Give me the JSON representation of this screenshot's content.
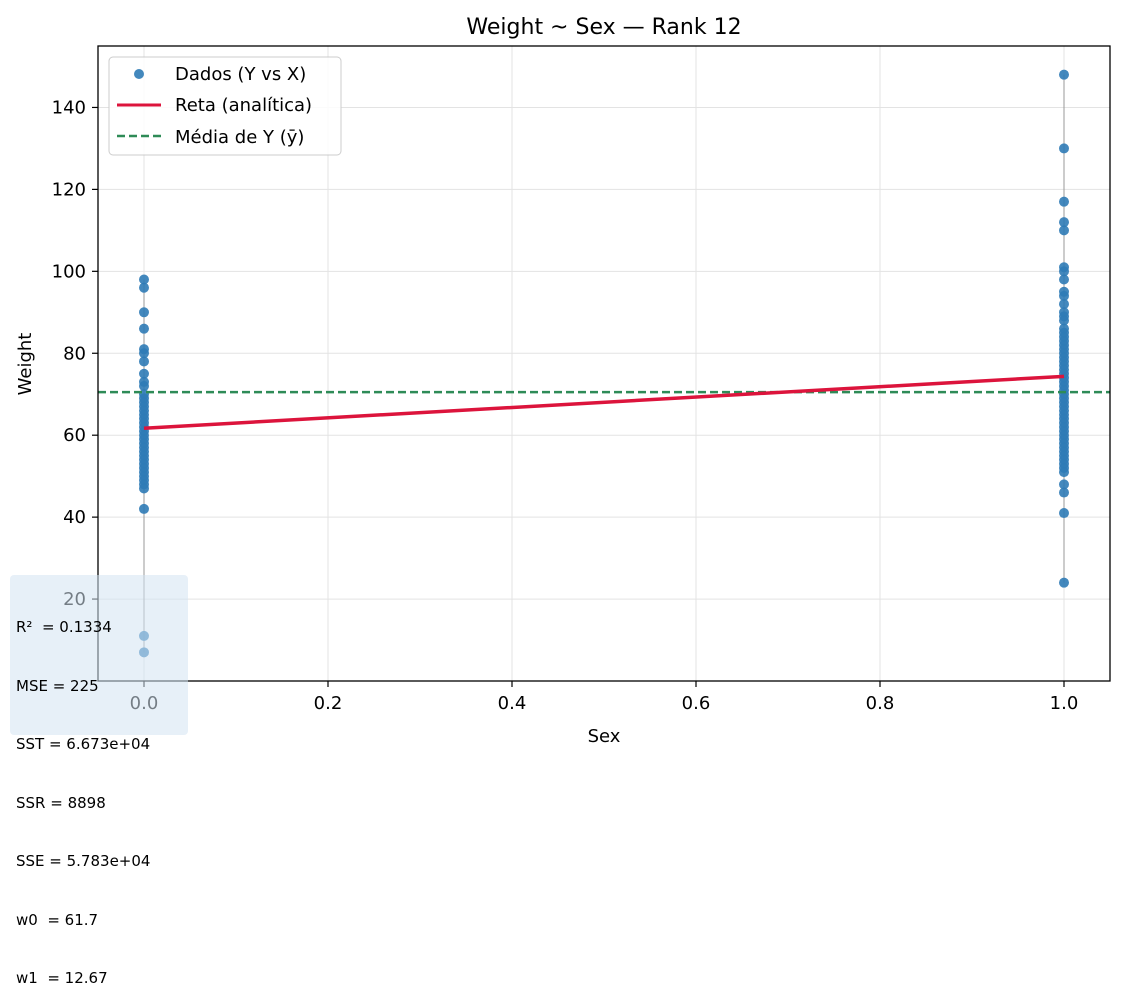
{
  "chart_data": {
    "type": "scatter",
    "title": "Weight ~ Sex — Rank 12",
    "xlabel": "Sex",
    "ylabel": "Weight",
    "xlim": [
      -0.05,
      1.05
    ],
    "ylim": [
      0,
      155
    ],
    "xticks": [
      0.0,
      0.2,
      0.4,
      0.6,
      0.8,
      1.0
    ],
    "xtick_labels": [
      "0.0",
      "0.2",
      "0.4",
      "0.6",
      "0.8",
      "1.0"
    ],
    "yticks": [
      20,
      40,
      60,
      80,
      100,
      120,
      140
    ],
    "ytick_labels": [
      "20",
      "40",
      "60",
      "80",
      "100",
      "120",
      "140"
    ],
    "grid": true,
    "legend_position": "top-left",
    "series": [
      {
        "name": "Dados (Y vs X)",
        "kind": "scatter",
        "color": "#2f7bb6",
        "points": [
          {
            "x": 0,
            "y": 98
          },
          {
            "x": 0,
            "y": 96
          },
          {
            "x": 0,
            "y": 90
          },
          {
            "x": 0,
            "y": 86
          },
          {
            "x": 0,
            "y": 81
          },
          {
            "x": 0,
            "y": 80
          },
          {
            "x": 0,
            "y": 78
          },
          {
            "x": 0,
            "y": 75
          },
          {
            "x": 0,
            "y": 73
          },
          {
            "x": 0,
            "y": 72
          },
          {
            "x": 0,
            "y": 70
          },
          {
            "x": 0,
            "y": 69
          },
          {
            "x": 0,
            "y": 68
          },
          {
            "x": 0,
            "y": 67
          },
          {
            "x": 0,
            "y": 66
          },
          {
            "x": 0,
            "y": 65
          },
          {
            "x": 0,
            "y": 64
          },
          {
            "x": 0,
            "y": 63
          },
          {
            "x": 0,
            "y": 62
          },
          {
            "x": 0,
            "y": 61
          },
          {
            "x": 0,
            "y": 60
          },
          {
            "x": 0,
            "y": 59
          },
          {
            "x": 0,
            "y": 58
          },
          {
            "x": 0,
            "y": 57
          },
          {
            "x": 0,
            "y": 56
          },
          {
            "x": 0,
            "y": 55
          },
          {
            "x": 0,
            "y": 54
          },
          {
            "x": 0,
            "y": 53
          },
          {
            "x": 0,
            "y": 52
          },
          {
            "x": 0,
            "y": 51
          },
          {
            "x": 0,
            "y": 50
          },
          {
            "x": 0,
            "y": 49
          },
          {
            "x": 0,
            "y": 48
          },
          {
            "x": 0,
            "y": 47
          },
          {
            "x": 0,
            "y": 42
          },
          {
            "x": 0,
            "y": 11
          },
          {
            "x": 0,
            "y": 7
          },
          {
            "x": 1,
            "y": 148
          },
          {
            "x": 1,
            "y": 130
          },
          {
            "x": 1,
            "y": 117
          },
          {
            "x": 1,
            "y": 112
          },
          {
            "x": 1,
            "y": 110
          },
          {
            "x": 1,
            "y": 101
          },
          {
            "x": 1,
            "y": 100
          },
          {
            "x": 1,
            "y": 98
          },
          {
            "x": 1,
            "y": 95
          },
          {
            "x": 1,
            "y": 94
          },
          {
            "x": 1,
            "y": 92
          },
          {
            "x": 1,
            "y": 90
          },
          {
            "x": 1,
            "y": 89
          },
          {
            "x": 1,
            "y": 88
          },
          {
            "x": 1,
            "y": 86
          },
          {
            "x": 1,
            "y": 85
          },
          {
            "x": 1,
            "y": 84
          },
          {
            "x": 1,
            "y": 83
          },
          {
            "x": 1,
            "y": 82
          },
          {
            "x": 1,
            "y": 81
          },
          {
            "x": 1,
            "y": 80
          },
          {
            "x": 1,
            "y": 79
          },
          {
            "x": 1,
            "y": 78
          },
          {
            "x": 1,
            "y": 77
          },
          {
            "x": 1,
            "y": 76
          },
          {
            "x": 1,
            "y": 75
          },
          {
            "x": 1,
            "y": 74
          },
          {
            "x": 1,
            "y": 73
          },
          {
            "x": 1,
            "y": 72
          },
          {
            "x": 1,
            "y": 71
          },
          {
            "x": 1,
            "y": 70
          },
          {
            "x": 1,
            "y": 69
          },
          {
            "x": 1,
            "y": 68
          },
          {
            "x": 1,
            "y": 67
          },
          {
            "x": 1,
            "y": 66
          },
          {
            "x": 1,
            "y": 65
          },
          {
            "x": 1,
            "y": 64
          },
          {
            "x": 1,
            "y": 63
          },
          {
            "x": 1,
            "y": 62
          },
          {
            "x": 1,
            "y": 61
          },
          {
            "x": 1,
            "y": 60
          },
          {
            "x": 1,
            "y": 59
          },
          {
            "x": 1,
            "y": 58
          },
          {
            "x": 1,
            "y": 57
          },
          {
            "x": 1,
            "y": 56
          },
          {
            "x": 1,
            "y": 55
          },
          {
            "x": 1,
            "y": 54
          },
          {
            "x": 1,
            "y": 53
          },
          {
            "x": 1,
            "y": 52
          },
          {
            "x": 1,
            "y": 51
          },
          {
            "x": 1,
            "y": 48
          },
          {
            "x": 1,
            "y": 46
          },
          {
            "x": 1,
            "y": 41
          },
          {
            "x": 1,
            "y": 24
          }
        ]
      },
      {
        "name": "Reta (analítica)",
        "kind": "line",
        "color": "#dc143c",
        "points": [
          {
            "x": 0,
            "y": 61.7
          },
          {
            "x": 1,
            "y": 74.37
          }
        ]
      },
      {
        "name": "Média de Y (ȳ)",
        "kind": "hline",
        "color": "#2e8b57",
        "dashed": true,
        "y": 70.5
      }
    ],
    "annotation": {
      "position": "bottom-left",
      "lines": [
        "R²  = 0.1334",
        "MSE = 225",
        "SST = 6.673e+04",
        "SSR = 8898",
        "SSE = 5.783e+04",
        "w0  = 61.7",
        "w1  = 12.67"
      ]
    }
  }
}
